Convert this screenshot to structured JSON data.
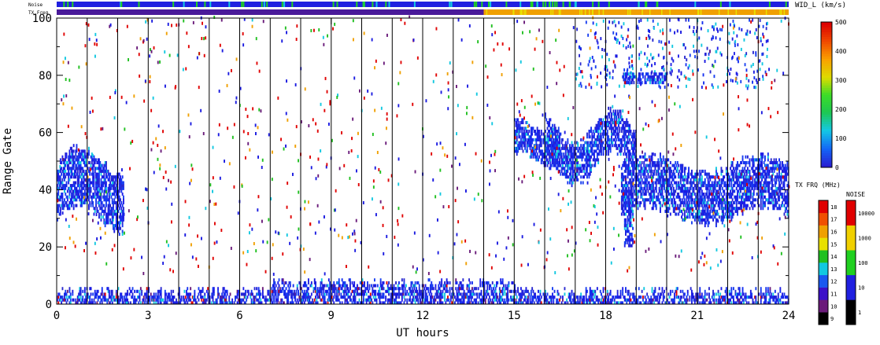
{
  "chart_data": {
    "type": "heatmap",
    "xlabel": "UT hours",
    "ylabel": "Range Gate",
    "xlim": [
      0,
      24
    ],
    "ylim": [
      0,
      100
    ],
    "x_ticks": [
      "0",
      "3",
      "6",
      "9",
      "12",
      "15",
      "18",
      "21",
      "24"
    ],
    "y_ticks": [
      "0",
      "20",
      "40",
      "60",
      "80",
      "100"
    ],
    "vertical_lines_ut": [
      1,
      2,
      3,
      4,
      5,
      6,
      7,
      8,
      9,
      10,
      11,
      12,
      13,
      14,
      15,
      16,
      17,
      18,
      19,
      20,
      21,
      22,
      23
    ],
    "status_bars": {
      "noise_label": "Noise",
      "txfreq_label": "TX Freq",
      "txfreq_change_ut": 14.0,
      "txfreq_before": "purple",
      "txfreq_after": "orange"
    },
    "colorbars": {
      "width": {
        "title": "WID_L (km/s)",
        "ticks": [
          "0",
          "100",
          "200",
          "300",
          "400",
          "500"
        ],
        "range": [
          0,
          500
        ]
      },
      "txfreq": {
        "title": "TX FRQ (MHz)",
        "ticks": [
          "9",
          "10",
          "11",
          "12",
          "13",
          "14",
          "15",
          "16",
          "17",
          "18"
        ],
        "colors": [
          "#000000",
          "#6a1b7a",
          "#3c10c8",
          "#1a58f0",
          "#12c8e0",
          "#20c020",
          "#e8e000",
          "#f0a000",
          "#f05000",
          "#e00000"
        ]
      },
      "noise": {
        "title": "NOISE",
        "ticks": [
          "1",
          "10",
          "100",
          "1000",
          "10000"
        ],
        "colors": [
          "#000000",
          "#2020e0",
          "#20d020",
          "#f0d000",
          "#e00000"
        ]
      }
    },
    "echo_bands": [
      {
        "name": "ground scatter",
        "ut_start": 0,
        "ut_end": 24,
        "gate_low": 0,
        "gate_high": 8
      },
      {
        "name": "early echoes",
        "ut_start": 0,
        "ut_end": 2.2,
        "gate_low": 25,
        "gate_high": 55
      },
      {
        "name": "afternoon echoes",
        "ut_start": 15,
        "ut_end": 24,
        "gate_low": 30,
        "gate_high": 65
      },
      {
        "name": "far-range patch",
        "ut_start": 16.5,
        "ut_end": 23.5,
        "gate_low": 75,
        "gate_high": 100
      }
    ]
  }
}
